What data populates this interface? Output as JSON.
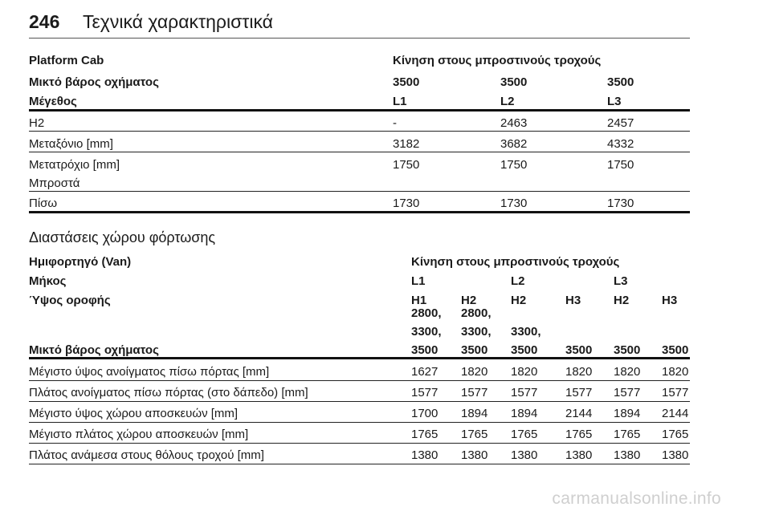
{
  "page": {
    "number": "246",
    "title": "Τεχνικά χαρακτηριστικά"
  },
  "table1": {
    "title_left": "Platform Cab",
    "title_right": "Κίνηση στους μπροστινούς τροχούς",
    "row_weight": {
      "label": "Μικτό βάρος οχήματος",
      "values": [
        "3500",
        "3500",
        "3500"
      ]
    },
    "row_size": {
      "label": "Μέγεθος",
      "values": [
        "L1",
        "L2",
        "L3"
      ]
    },
    "rows": [
      {
        "label": "H2",
        "values": [
          "-",
          "2463",
          "2457"
        ]
      },
      {
        "label": "Μεταξόνιο [mm]",
        "values": [
          "3182",
          "3682",
          "4332"
        ]
      },
      {
        "label": "Μετατρόχιο [mm]",
        "sublabel": "Μπροστά",
        "values": [
          "1750",
          "1750",
          "1750"
        ]
      },
      {
        "label": "Πίσω",
        "values": [
          "1730",
          "1730",
          "1730"
        ]
      }
    ]
  },
  "section2": {
    "title": "Διαστάσεις χώρου φόρτωσης"
  },
  "table2": {
    "title_left": "Ημιφορτηγό (Van)",
    "title_right": "Κίνηση στους μπροστινούς τροχούς",
    "length": {
      "label": "Μήκος",
      "values": [
        "L1",
        "L2",
        "L3"
      ]
    },
    "height": {
      "label": "Ύψος οροφής",
      "values": [
        "H1",
        "H2",
        "H2",
        "H3",
        "H2",
        "H3"
      ]
    },
    "weight": {
      "label": "Μικτό βάρος οχήματος",
      "cells": [
        [
          "2800,",
          "3300,",
          "3500"
        ],
        [
          "2800,",
          "3300,",
          "3500"
        ],
        [
          "3300,",
          "3500"
        ],
        [
          "3500"
        ],
        [
          "3500"
        ],
        [
          "3500"
        ]
      ]
    },
    "rows": [
      {
        "label": "Μέγιστο ύψος ανοίγματος πίσω πόρτας [mm]",
        "values": [
          "1627",
          "1820",
          "1820",
          "1820",
          "1820",
          "1820"
        ]
      },
      {
        "label": "Πλάτος ανοίγματος πίσω πόρτας (στο δάπεδο) [mm]",
        "values": [
          "1577",
          "1577",
          "1577",
          "1577",
          "1577",
          "1577"
        ]
      },
      {
        "label": "Μέγιστο ύψος χώρου αποσκευών [mm]",
        "values": [
          "1700",
          "1894",
          "1894",
          "2144",
          "1894",
          "2144"
        ]
      },
      {
        "label": "Μέγιστο πλάτος χώρου αποσκευών [mm]",
        "values": [
          "1765",
          "1765",
          "1765",
          "1765",
          "1765",
          "1765"
        ]
      },
      {
        "label": "Πλάτος ανάμεσα στους θόλους τροχού [mm]",
        "values": [
          "1380",
          "1380",
          "1380",
          "1380",
          "1380",
          "1380"
        ]
      }
    ]
  },
  "watermark": "carmanualsonline.info"
}
